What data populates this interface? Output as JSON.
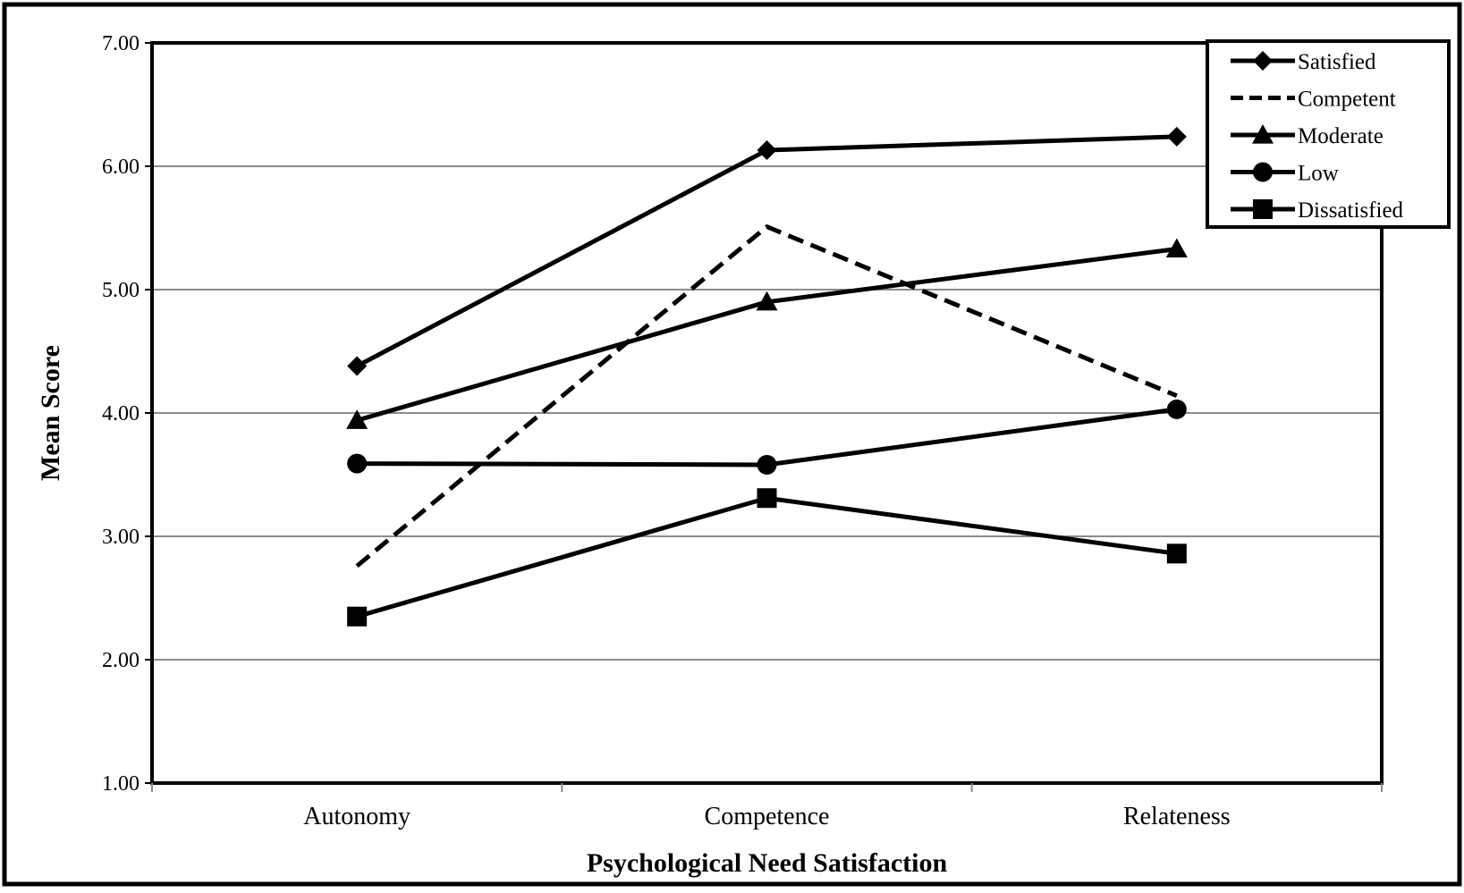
{
  "chart_data": {
    "type": "line",
    "xlabel": "Psychological Need Satisfaction",
    "ylabel": "Mean Score",
    "categories": [
      "Autonomy",
      "Competence",
      "Relateness"
    ],
    "ylim": [
      1.0,
      7.0
    ],
    "yticks": [
      "1.00",
      "2.00",
      "3.00",
      "4.00",
      "5.00",
      "6.00",
      "7.00"
    ],
    "grid": true,
    "legend_position": "top-right",
    "series": [
      {
        "name": "Satisfied",
        "values": [
          4.38,
          6.13,
          6.24
        ],
        "marker": "diamond",
        "dash": "solid"
      },
      {
        "name": "Competent",
        "values": [
          2.76,
          5.51,
          4.14
        ],
        "marker": "none",
        "dash": "dashed"
      },
      {
        "name": "Moderate",
        "values": [
          3.94,
          4.9,
          5.33
        ],
        "marker": "triangle",
        "dash": "solid"
      },
      {
        "name": "Low",
        "values": [
          3.59,
          3.58,
          4.03
        ],
        "marker": "circle",
        "dash": "solid"
      },
      {
        "name": "Dissatisfied",
        "values": [
          2.35,
          3.31,
          2.86
        ],
        "marker": "square",
        "dash": "solid"
      }
    ]
  }
}
